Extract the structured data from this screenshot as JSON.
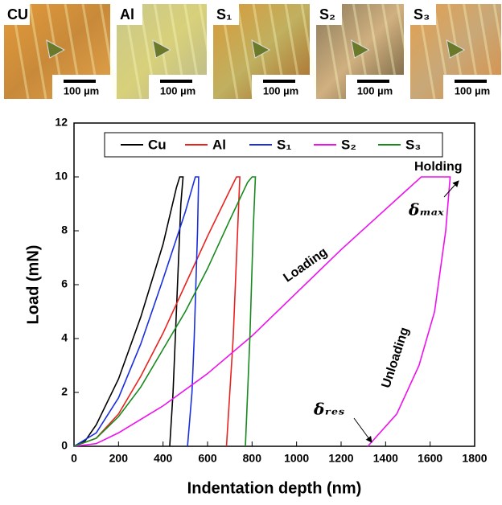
{
  "panels": [
    {
      "label": "CU",
      "scale": "100 µm"
    },
    {
      "label": "Al",
      "scale": "100 µm"
    },
    {
      "label": "S₁",
      "scale": "100 µm"
    },
    {
      "label": "S₂",
      "scale": "100 µm"
    },
    {
      "label": "S₃",
      "scale": "100 µm"
    }
  ],
  "chart_data": {
    "type": "line",
    "x_label": "Indentation depth (nm)",
    "y_label": "Load (mN)",
    "xlim": [
      0,
      1800
    ],
    "xticks": [
      0,
      200,
      400,
      600,
      800,
      1000,
      1200,
      1400,
      1600,
      1800
    ],
    "ylim": [
      0,
      12
    ],
    "yticks": [
      0,
      2,
      4,
      6,
      8,
      10,
      12
    ],
    "legend": "top",
    "annotations": [
      "Holding",
      "Loading",
      "Unloading",
      "δₘₐₓ",
      "δᵣₑₛ"
    ],
    "series": [
      {
        "name": "Cu",
        "color": "#000000",
        "x": [
          0,
          50,
          100,
          200,
          300,
          400,
          460,
          475,
          490,
          480,
          460,
          445,
          430
        ],
        "values": [
          0,
          0.2,
          0.8,
          2.5,
          4.8,
          7.5,
          9.6,
          10,
          10,
          9,
          5,
          2,
          0
        ]
      },
      {
        "name": "Al",
        "color": "#e8231f",
        "x": [
          0,
          100,
          200,
          300,
          400,
          500,
          600,
          700,
          730,
          745,
          735,
          715,
          700,
          685
        ],
        "values": [
          0,
          0.3,
          1.2,
          2.6,
          4.2,
          6,
          7.8,
          9.5,
          10,
          10,
          8,
          4,
          2,
          0
        ]
      },
      {
        "name": "S₁",
        "color": "#1a2fe0",
        "x": [
          0,
          100,
          200,
          300,
          400,
          500,
          545,
          560,
          555,
          540,
          530,
          510
        ],
        "values": [
          0,
          0.5,
          1.8,
          3.8,
          6.2,
          8.7,
          10,
          10,
          8,
          4,
          2,
          0
        ]
      },
      {
        "name": "S₂",
        "color": "#ee10ee",
        "x": [
          0,
          100,
          200,
          400,
          600,
          800,
          1000,
          1200,
          1400,
          1560,
          1690,
          1670,
          1620,
          1550,
          1450,
          1320
        ],
        "values": [
          0,
          0.1,
          0.5,
          1.5,
          2.7,
          4.1,
          5.7,
          7.3,
          8.8,
          10,
          10,
          8,
          5,
          3,
          1.2,
          0
        ]
      },
      {
        "name": "S₃",
        "color": "#178a1e",
        "x": [
          0,
          100,
          200,
          300,
          400,
          500,
          600,
          700,
          780,
          800,
          815,
          805,
          790,
          780,
          770
        ],
        "values": [
          0,
          0.3,
          1.1,
          2.2,
          3.6,
          5,
          6.6,
          8.4,
          9.8,
          10,
          10,
          8,
          4,
          2,
          0
        ]
      }
    ]
  }
}
